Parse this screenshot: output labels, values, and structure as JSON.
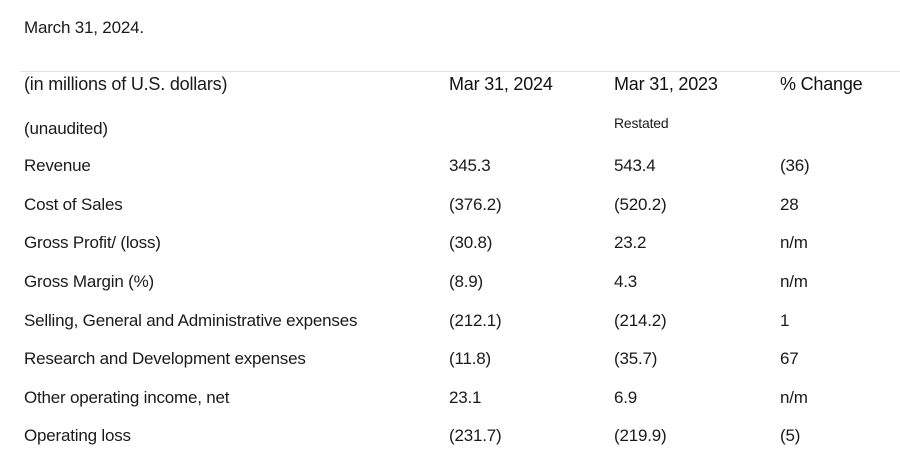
{
  "intro_text": "March 31, 2024.",
  "table": {
    "headers": {
      "label": "(in millions of U.S. dollars)",
      "col1": "Mar 31, 2024",
      "col2": "Mar 31, 2023",
      "col3": "% Change"
    },
    "subheader": {
      "label": "(unaudited)",
      "col2": "Restated"
    },
    "rows": [
      {
        "label": "Revenue",
        "v2024": "345.3",
        "v2023": "543.4",
        "change": "(36)"
      },
      {
        "label": "Cost of Sales",
        "v2024": "(376.2)",
        "v2023": "(520.2)",
        "change": "28"
      },
      {
        "label": "Gross Profit/ (loss)",
        "v2024": "(30.8)",
        "v2023": "23.2",
        "change": "n/m"
      },
      {
        "label": "Gross Margin (%)",
        "v2024": "(8.9)",
        "v2023": "4.3",
        "change": "n/m"
      },
      {
        "label": "Selling, General and Administrative expenses",
        "v2024": "(212.1)",
        "v2023": "(214.2)",
        "change": "1"
      },
      {
        "label": "Research and Development expenses",
        "v2024": "(11.8)",
        "v2023": "(35.7)",
        "change": "67"
      },
      {
        "label": "Other operating income, net",
        "v2024": "23.1",
        "v2023": "6.9",
        "change": "n/m"
      },
      {
        "label": "Operating loss",
        "v2024": "(231.7)",
        "v2023": "(219.9)",
        "change": "(5)"
      }
    ]
  }
}
